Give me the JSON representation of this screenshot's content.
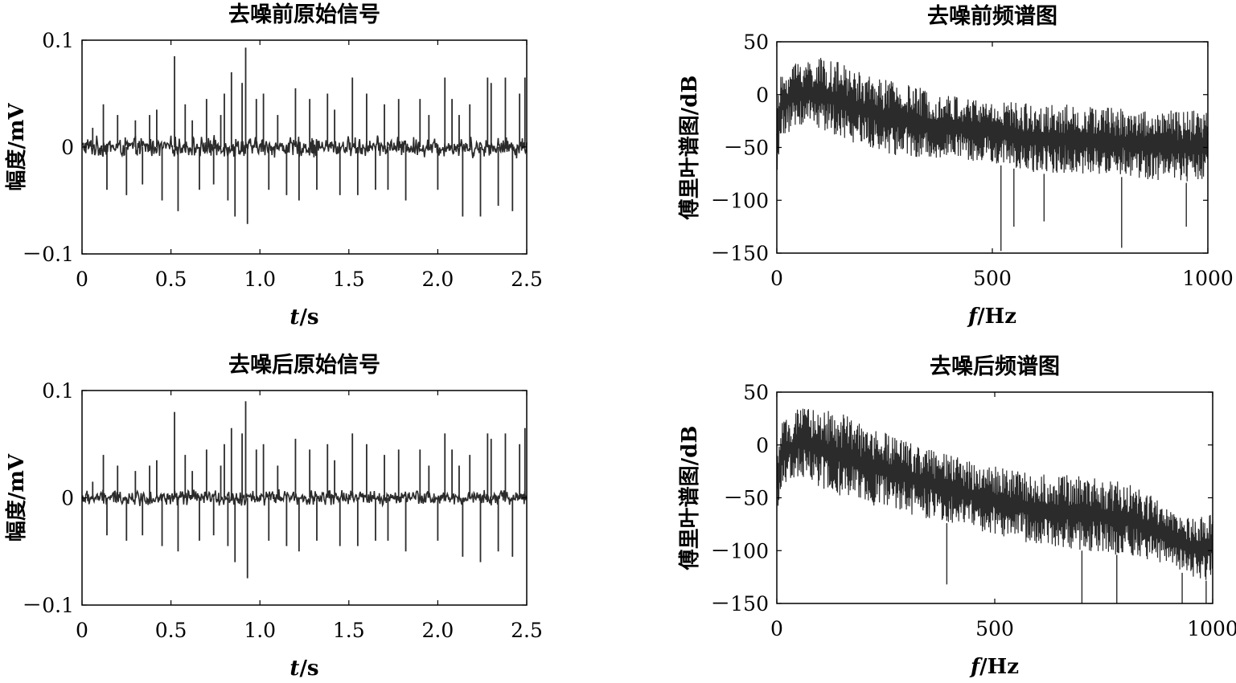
{
  "chart_data": [
    {
      "id": "raw-signal-before",
      "type": "line",
      "title": "去噪前原始信号",
      "xlabel_italic": "t",
      "xlabel_rest": "/s",
      "ylabel": "幅度/mV",
      "xlim": [
        0,
        2.5
      ],
      "ylim": [
        -0.1,
        0.1
      ],
      "xticks": [
        "0",
        "0.5",
        "1.0",
        "1.5",
        "2.0",
        "2.5"
      ],
      "yticks": [
        "0.1",
        "0",
        "－0.1"
      ],
      "ytick_values": [
        0.1,
        0,
        -0.1
      ],
      "xtick_values": [
        0,
        0.5,
        1.0,
        1.5,
        2.0,
        2.5
      ],
      "noise_amplitude": 0.008,
      "spikes": [
        {
          "x": 0.06,
          "y": 0.018
        },
        {
          "x": 0.12,
          "y": 0.04
        },
        {
          "x": 0.14,
          "y": -0.04
        },
        {
          "x": 0.2,
          "y": 0.03
        },
        {
          "x": 0.25,
          "y": -0.045
        },
        {
          "x": 0.3,
          "y": 0.025
        },
        {
          "x": 0.34,
          "y": -0.035
        },
        {
          "x": 0.38,
          "y": 0.03
        },
        {
          "x": 0.42,
          "y": 0.035
        },
        {
          "x": 0.45,
          "y": -0.05
        },
        {
          "x": 0.52,
          "y": 0.085
        },
        {
          "x": 0.54,
          "y": -0.06
        },
        {
          "x": 0.58,
          "y": 0.04
        },
        {
          "x": 0.62,
          "y": 0.025
        },
        {
          "x": 0.66,
          "y": -0.04
        },
        {
          "x": 0.7,
          "y": 0.045
        },
        {
          "x": 0.74,
          "y": -0.035
        },
        {
          "x": 0.78,
          "y": 0.03
        },
        {
          "x": 0.8,
          "y": 0.05
        },
        {
          "x": 0.82,
          "y": -0.05
        },
        {
          "x": 0.84,
          "y": 0.07
        },
        {
          "x": 0.86,
          "y": -0.065
        },
        {
          "x": 0.9,
          "y": 0.06
        },
        {
          "x": 0.92,
          "y": 0.093
        },
        {
          "x": 0.93,
          "y": -0.072
        },
        {
          "x": 0.98,
          "y": 0.045
        },
        {
          "x": 1.02,
          "y": 0.05
        },
        {
          "x": 1.05,
          "y": -0.04
        },
        {
          "x": 1.1,
          "y": 0.03
        },
        {
          "x": 1.15,
          "y": -0.045
        },
        {
          "x": 1.2,
          "y": 0.055
        },
        {
          "x": 1.22,
          "y": -0.05
        },
        {
          "x": 1.28,
          "y": 0.045
        },
        {
          "x": 1.32,
          "y": -0.04
        },
        {
          "x": 1.38,
          "y": 0.05
        },
        {
          "x": 1.42,
          "y": 0.035
        },
        {
          "x": 1.45,
          "y": -0.045
        },
        {
          "x": 1.52,
          "y": 0.065
        },
        {
          "x": 1.55,
          "y": -0.045
        },
        {
          "x": 1.6,
          "y": 0.05
        },
        {
          "x": 1.65,
          "y": -0.04
        },
        {
          "x": 1.7,
          "y": 0.04
        },
        {
          "x": 1.72,
          "y": -0.04
        },
        {
          "x": 1.78,
          "y": 0.045
        },
        {
          "x": 1.82,
          "y": -0.05
        },
        {
          "x": 1.9,
          "y": 0.045
        },
        {
          "x": 1.95,
          "y": 0.03
        },
        {
          "x": 2.0,
          "y": -0.04
        },
        {
          "x": 2.04,
          "y": 0.065
        },
        {
          "x": 2.08,
          "y": 0.045
        },
        {
          "x": 2.12,
          "y": 0.03
        },
        {
          "x": 2.14,
          "y": -0.065
        },
        {
          "x": 2.18,
          "y": 0.04
        },
        {
          "x": 2.24,
          "y": -0.065
        },
        {
          "x": 2.28,
          "y": 0.065
        },
        {
          "x": 2.3,
          "y": 0.06
        },
        {
          "x": 2.34,
          "y": -0.055
        },
        {
          "x": 2.38,
          "y": 0.065
        },
        {
          "x": 2.42,
          "y": -0.06
        },
        {
          "x": 2.46,
          "y": 0.05
        },
        {
          "x": 2.49,
          "y": 0.065
        }
      ]
    },
    {
      "id": "spectrum-before",
      "type": "line",
      "title": "去噪前频谱图",
      "xlabel_italic": "f",
      "xlabel_rest": "/Hz",
      "ylabel": "傅里叶谱图/dB",
      "xlim": [
        0,
        1000
      ],
      "ylim": [
        -150,
        50
      ],
      "xticks": [
        "0",
        "500",
        "1000"
      ],
      "yticks": [
        "50",
        "0",
        "－50",
        "－100",
        "－150"
      ],
      "ytick_values": [
        50,
        0,
        -50,
        -100,
        -150
      ],
      "xtick_values": [
        0,
        500,
        1000
      ],
      "envelope_top": [
        [
          0,
          -10
        ],
        [
          10,
          20
        ],
        [
          50,
          35
        ],
        [
          100,
          35
        ],
        [
          150,
          30
        ],
        [
          200,
          20
        ],
        [
          300,
          10
        ],
        [
          400,
          0
        ],
        [
          500,
          -5
        ],
        [
          600,
          -8
        ],
        [
          700,
          -10
        ],
        [
          800,
          -12
        ],
        [
          900,
          -15
        ],
        [
          1000,
          -15
        ]
      ],
      "envelope_bottom": [
        [
          0,
          -80
        ],
        [
          10,
          -40
        ],
        [
          50,
          -30
        ],
        [
          100,
          -35
        ],
        [
          150,
          -40
        ],
        [
          200,
          -50
        ],
        [
          300,
          -60
        ],
        [
          400,
          -60
        ],
        [
          500,
          -65
        ],
        [
          600,
          -75
        ],
        [
          700,
          -75
        ],
        [
          800,
          -78
        ],
        [
          900,
          -82
        ],
        [
          1000,
          -85
        ]
      ],
      "dips": [
        {
          "x": 520,
          "y": -148
        },
        {
          "x": 800,
          "y": -145
        },
        {
          "x": 550,
          "y": -125
        },
        {
          "x": 620,
          "y": -120
        },
        {
          "x": 950,
          "y": -125
        }
      ]
    },
    {
      "id": "raw-signal-after",
      "type": "line",
      "title": "去噪后原始信号",
      "xlabel_italic": "t",
      "xlabel_rest": "/s",
      "ylabel": "幅度/mV",
      "xlim": [
        0,
        2.5
      ],
      "ylim": [
        -0.1,
        0.1
      ],
      "xticks": [
        "0",
        "0.5",
        "1.0",
        "1.5",
        "2.0",
        "2.5"
      ],
      "yticks": [
        "0.1",
        "0",
        "－0.1"
      ],
      "ytick_values": [
        0.1,
        0,
        -0.1
      ],
      "xtick_values": [
        0,
        0.5,
        1.0,
        1.5,
        2.0,
        2.5
      ],
      "noise_amplitude": 0.006,
      "spikes": [
        {
          "x": 0.06,
          "y": 0.015
        },
        {
          "x": 0.12,
          "y": 0.04
        },
        {
          "x": 0.14,
          "y": -0.035
        },
        {
          "x": 0.2,
          "y": 0.03
        },
        {
          "x": 0.25,
          "y": -0.04
        },
        {
          "x": 0.3,
          "y": 0.025
        },
        {
          "x": 0.34,
          "y": -0.035
        },
        {
          "x": 0.38,
          "y": 0.03
        },
        {
          "x": 0.42,
          "y": 0.035
        },
        {
          "x": 0.45,
          "y": -0.045
        },
        {
          "x": 0.52,
          "y": 0.08
        },
        {
          "x": 0.54,
          "y": -0.05
        },
        {
          "x": 0.58,
          "y": 0.04
        },
        {
          "x": 0.62,
          "y": 0.025
        },
        {
          "x": 0.66,
          "y": -0.04
        },
        {
          "x": 0.7,
          "y": 0.045
        },
        {
          "x": 0.74,
          "y": -0.035
        },
        {
          "x": 0.78,
          "y": 0.03
        },
        {
          "x": 0.8,
          "y": 0.05
        },
        {
          "x": 0.82,
          "y": -0.045
        },
        {
          "x": 0.84,
          "y": 0.065
        },
        {
          "x": 0.86,
          "y": -0.06
        },
        {
          "x": 0.9,
          "y": 0.06
        },
        {
          "x": 0.92,
          "y": 0.09
        },
        {
          "x": 0.93,
          "y": -0.075
        },
        {
          "x": 0.98,
          "y": 0.045
        },
        {
          "x": 1.02,
          "y": 0.05
        },
        {
          "x": 1.05,
          "y": -0.04
        },
        {
          "x": 1.1,
          "y": 0.03
        },
        {
          "x": 1.15,
          "y": -0.045
        },
        {
          "x": 1.2,
          "y": 0.055
        },
        {
          "x": 1.22,
          "y": -0.05
        },
        {
          "x": 1.28,
          "y": 0.045
        },
        {
          "x": 1.32,
          "y": -0.04
        },
        {
          "x": 1.38,
          "y": 0.05
        },
        {
          "x": 1.42,
          "y": 0.035
        },
        {
          "x": 1.45,
          "y": -0.045
        },
        {
          "x": 1.52,
          "y": 0.06
        },
        {
          "x": 1.55,
          "y": -0.045
        },
        {
          "x": 1.6,
          "y": 0.05
        },
        {
          "x": 1.65,
          "y": -0.04
        },
        {
          "x": 1.7,
          "y": 0.04
        },
        {
          "x": 1.72,
          "y": -0.04
        },
        {
          "x": 1.78,
          "y": 0.045
        },
        {
          "x": 1.82,
          "y": -0.05
        },
        {
          "x": 1.9,
          "y": 0.045
        },
        {
          "x": 1.95,
          "y": 0.03
        },
        {
          "x": 2.0,
          "y": -0.04
        },
        {
          "x": 2.04,
          "y": 0.06
        },
        {
          "x": 2.08,
          "y": 0.045
        },
        {
          "x": 2.12,
          "y": 0.03
        },
        {
          "x": 2.14,
          "y": -0.055
        },
        {
          "x": 2.18,
          "y": 0.04
        },
        {
          "x": 2.24,
          "y": -0.06
        },
        {
          "x": 2.28,
          "y": 0.06
        },
        {
          "x": 2.3,
          "y": 0.055
        },
        {
          "x": 2.34,
          "y": -0.05
        },
        {
          "x": 2.38,
          "y": 0.06
        },
        {
          "x": 2.42,
          "y": -0.055
        },
        {
          "x": 2.46,
          "y": 0.05
        },
        {
          "x": 2.49,
          "y": 0.065
        }
      ]
    },
    {
      "id": "spectrum-after",
      "type": "line",
      "title": "去噪后频谱图",
      "xlabel_italic": "f",
      "xlabel_rest": "/Hz",
      "ylabel": "傅里叶谱图/dB",
      "xlim": [
        0,
        1000
      ],
      "ylim": [
        -150,
        50
      ],
      "xticks": [
        "0",
        "500",
        "1000"
      ],
      "yticks": [
        "50",
        "0",
        "－50",
        "－100",
        "－150"
      ],
      "ytick_values": [
        50,
        0,
        -50,
        -100,
        -150
      ],
      "xtick_values": [
        0,
        500,
        1000
      ],
      "envelope_top": [
        [
          0,
          -5
        ],
        [
          10,
          20
        ],
        [
          50,
          35
        ],
        [
          100,
          35
        ],
        [
          150,
          30
        ],
        [
          200,
          18
        ],
        [
          300,
          5
        ],
        [
          400,
          -10
        ],
        [
          500,
          -20
        ],
        [
          600,
          -28
        ],
        [
          700,
          -28
        ],
        [
          800,
          -35
        ],
        [
          850,
          -45
        ],
        [
          900,
          -60
        ],
        [
          950,
          -70
        ],
        [
          1000,
          -65
        ]
      ],
      "envelope_bottom": [
        [
          0,
          -70
        ],
        [
          10,
          -40
        ],
        [
          50,
          -30
        ],
        [
          100,
          -40
        ],
        [
          150,
          -50
        ],
        [
          200,
          -55
        ],
        [
          300,
          -65
        ],
        [
          400,
          -75
        ],
        [
          500,
          -85
        ],
        [
          600,
          -95
        ],
        [
          700,
          -100
        ],
        [
          800,
          -105
        ],
        [
          900,
          -115
        ],
        [
          950,
          -125
        ],
        [
          1000,
          -130
        ]
      ],
      "dips": [
        {
          "x": 390,
          "y": -132
        },
        {
          "x": 700,
          "y": -150
        },
        {
          "x": 780,
          "y": -150
        },
        {
          "x": 930,
          "y": -150
        },
        {
          "x": 985,
          "y": -150
        }
      ]
    }
  ]
}
